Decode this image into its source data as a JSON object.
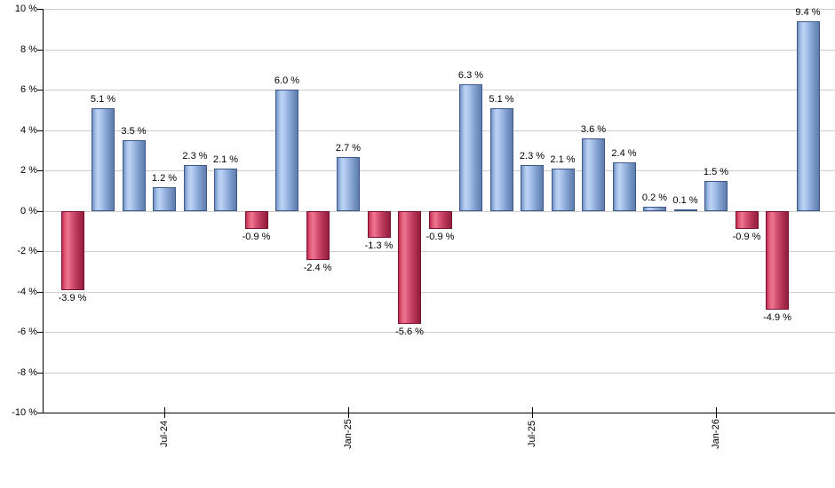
{
  "chart_data": {
    "type": "bar",
    "title": "",
    "xlabel": "",
    "ylabel": "",
    "unit": "%",
    "grid": true,
    "legend": "none",
    "y_axis": {
      "min": -10,
      "max": 10,
      "step": 2,
      "tick_labels": [
        "10 %",
        "8 %",
        "6 %",
        "4 %",
        "2 %",
        "0 %",
        "-2 %",
        "-4 %",
        "-6 %",
        "-8 %",
        "-10 %"
      ]
    },
    "x_axis": {
      "ticks": [
        {
          "label": "Jul-24",
          "bar_index": 3
        },
        {
          "label": "Jan-25",
          "bar_index": 9
        },
        {
          "label": "Jul-25",
          "bar_index": 15
        },
        {
          "label": "Jan-26",
          "bar_index": 21
        }
      ]
    },
    "bars": [
      {
        "value": -3.9,
        "label": "-3.9 %"
      },
      {
        "value": 5.1,
        "label": "5.1 %"
      },
      {
        "value": 3.5,
        "label": "3.5 %"
      },
      {
        "value": 1.2,
        "label": "1.2 %"
      },
      {
        "value": 2.3,
        "label": "2.3 %"
      },
      {
        "value": 2.1,
        "label": "2.1 %"
      },
      {
        "value": -0.9,
        "label": "-0.9 %"
      },
      {
        "value": 6.0,
        "label": "6.0 %"
      },
      {
        "value": -2.4,
        "label": "-2.4 %"
      },
      {
        "value": 2.7,
        "label": "2.7 %"
      },
      {
        "value": -1.3,
        "label": "-1.3 %"
      },
      {
        "value": -5.6,
        "label": "-5.6 %"
      },
      {
        "value": -0.9,
        "label": "-0.9 %"
      },
      {
        "value": 6.3,
        "label": "6.3 %"
      },
      {
        "value": 5.1,
        "label": "5.1 %"
      },
      {
        "value": 2.3,
        "label": "2.3 %"
      },
      {
        "value": 2.1,
        "label": "2.1 %"
      },
      {
        "value": 3.6,
        "label": "3.6 %"
      },
      {
        "value": 2.4,
        "label": "2.4 %"
      },
      {
        "value": 0.2,
        "label": "0.2 %"
      },
      {
        "value": 0.1,
        "label": "0.1 %"
      },
      {
        "value": 1.5,
        "label": "1.5 %"
      },
      {
        "value": -0.9,
        "label": "-0.9 %"
      },
      {
        "value": -4.9,
        "label": "-4.9 %"
      },
      {
        "value": 9.4,
        "label": "9.4 %"
      }
    ],
    "colors": {
      "positive_bar": "#9db9e4",
      "positive_border": "#3c5889",
      "negative_bar": "#d75475",
      "negative_border": "#77132f",
      "grid": "#cccccc",
      "axis": "#000000",
      "text": "#000000",
      "background": "#ffffff"
    }
  }
}
